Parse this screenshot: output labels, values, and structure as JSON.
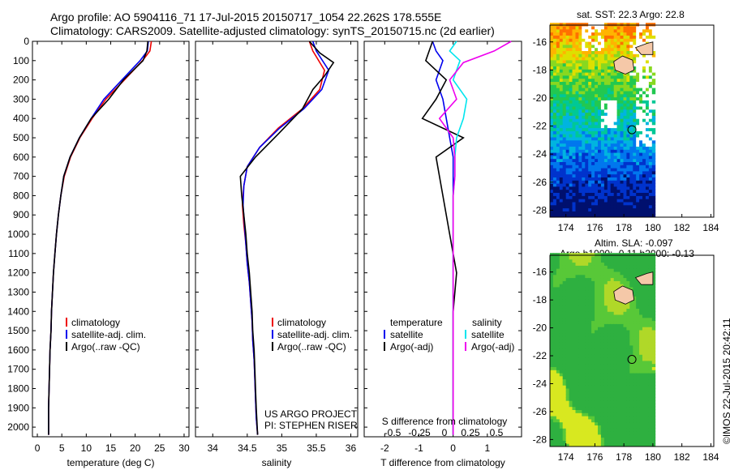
{
  "header": {
    "title_line1": "Argo profile: AO 5904116_71 17-Jul-2015 20150717_1054 22.262S 178.555E",
    "title_line2": "Climatology: CARS2009. Satellite-adjusted climatology: synTS_20150715.nc (2d earlier)"
  },
  "colors": {
    "climatology": "#ee0000",
    "satellite": "#0000ee",
    "argo": "#000000",
    "salinity_satellite": "#00e5ee",
    "salinity_argo": "#ee00ee",
    "land": "#f5c8a8"
  },
  "chart_data": [
    {
      "type": "line",
      "name_key": "temperature",
      "xlabel": "temperature (deg C)",
      "ylabel": "",
      "xlim": [
        -1,
        31
      ],
      "ylim": [
        2050,
        0
      ],
      "xticks": [
        0,
        5,
        10,
        15,
        20,
        25,
        30
      ],
      "yticks": [
        0,
        100,
        200,
        300,
        400,
        500,
        600,
        700,
        800,
        900,
        1000,
        1100,
        1200,
        1300,
        1400,
        1500,
        1600,
        1700,
        1800,
        1900,
        2000
      ],
      "legend": [
        "climatology",
        "satellite-adj. clim.",
        "Argo(..raw -QC)"
      ],
      "legend_position": "lower-center",
      "series": [
        {
          "name": "climatology",
          "color": "climatology",
          "x": [
            23.3,
            23.0,
            21.5,
            17.8,
            14.0,
            11.2,
            8.7,
            6.8,
            5.5,
            4.8,
            4.3,
            3.9,
            3.6,
            3.3,
            3.1,
            2.9,
            2.8,
            2.6,
            2.5,
            2.4,
            2.3,
            2.3
          ],
          "y": [
            0,
            50,
            100,
            200,
            300,
            400,
            500,
            600,
            700,
            800,
            900,
            1000,
            1100,
            1200,
            1300,
            1400,
            1500,
            1600,
            1700,
            1800,
            1900,
            2040
          ]
        },
        {
          "name": "satellite-adj. clim.",
          "color": "satellite",
          "x": [
            22.7,
            22.5,
            21.0,
            17.3,
            13.6,
            11.0,
            8.6,
            6.7,
            5.4,
            4.8,
            4.3,
            3.9,
            3.6,
            3.3,
            3.1,
            2.9,
            2.8,
            2.6,
            2.5,
            2.4,
            2.3,
            2.3
          ],
          "y": [
            0,
            50,
            100,
            200,
            300,
            400,
            500,
            600,
            700,
            800,
            900,
            1000,
            1100,
            1200,
            1300,
            1400,
            1500,
            1600,
            1700,
            1800,
            1900,
            2040
          ]
        },
        {
          "name": "Argo(..raw -QC)",
          "color": "argo",
          "x": [
            22.6,
            22.4,
            21.6,
            17.6,
            14.6,
            11.0,
            8.6,
            6.7,
            5.4,
            4.8,
            4.3,
            3.9,
            3.6,
            3.3,
            3.1,
            2.9,
            2.8,
            2.6,
            2.5,
            2.4,
            2.3,
            2.3
          ],
          "y": [
            0,
            50,
            100,
            200,
            300,
            400,
            500,
            600,
            700,
            800,
            900,
            1000,
            1100,
            1200,
            1300,
            1400,
            1500,
            1600,
            1700,
            1800,
            1900,
            2040
          ]
        }
      ]
    },
    {
      "type": "line",
      "name_key": "salinity",
      "xlabel": "salinity",
      "xlim": [
        33.75,
        36.1
      ],
      "ylim": [
        2050,
        0
      ],
      "xticks": [
        34,
        34.5,
        35,
        35.5,
        36
      ],
      "legend": [
        "climatology",
        "satellite-adj. clim.",
        "Argo(..raw -QC)"
      ],
      "legend_position": "lower-center",
      "annotation_lines": [
        "US ARGO PROJECT",
        "PI: STEPHEN RISER"
      ],
      "series": [
        {
          "name": "climatology",
          "color": "climatology",
          "x": [
            35.4,
            35.45,
            35.62,
            35.55,
            35.3,
            34.95,
            34.68,
            34.5,
            34.45,
            34.43,
            34.45,
            34.48,
            34.5,
            34.53,
            34.55,
            34.57,
            34.58,
            34.6,
            34.61,
            34.62,
            34.63,
            34.65
          ],
          "y": [
            0,
            50,
            150,
            250,
            350,
            450,
            550,
            650,
            750,
            850,
            950,
            1050,
            1150,
            1250,
            1350,
            1450,
            1550,
            1650,
            1750,
            1850,
            1950,
            2040
          ]
        },
        {
          "name": "satellite-adj. clim.",
          "color": "satellite",
          "x": [
            35.45,
            35.5,
            35.68,
            35.58,
            35.32,
            34.97,
            34.68,
            34.5,
            34.45,
            34.44,
            34.46,
            34.48,
            34.5,
            34.53,
            34.55,
            34.57,
            34.58,
            34.6,
            34.61,
            34.62,
            34.63,
            34.65
          ],
          "y": [
            0,
            50,
            150,
            250,
            350,
            450,
            550,
            650,
            750,
            850,
            950,
            1050,
            1150,
            1250,
            1350,
            1450,
            1550,
            1650,
            1750,
            1850,
            1950,
            2040
          ]
        },
        {
          "name": "Argo(..raw -QC)",
          "color": "argo",
          "x": [
            35.4,
            35.55,
            35.75,
            35.62,
            35.45,
            35.3,
            34.95,
            34.62,
            34.4,
            34.42,
            34.45,
            34.48,
            34.5,
            34.53,
            34.55,
            34.57,
            34.58,
            34.6,
            34.61,
            34.62,
            34.63,
            34.65
          ],
          "y": [
            0,
            60,
            110,
            180,
            250,
            350,
            480,
            600,
            700,
            800,
            900,
            1000,
            1100,
            1200,
            1300,
            1400,
            1500,
            1600,
            1700,
            1800,
            1900,
            2040
          ]
        }
      ]
    },
    {
      "type": "line",
      "name_key": "differences",
      "xlabel": "T difference from climatology",
      "xlabel_top": "S difference from climatology",
      "xlim": [
        -2.6,
        2.0
      ],
      "ylim": [
        2050,
        0
      ],
      "xticks": [
        -2,
        -1,
        0,
        1
      ],
      "xticks_top": [
        "-0.5",
        "-0.25",
        "0",
        "0.25",
        "0.5"
      ],
      "legend_temperature": {
        "title": "temperature",
        "items": [
          "satellite",
          "Argo(-adj)"
        ]
      },
      "legend_salinity": {
        "title": "salinity",
        "items": [
          "satellite",
          "Argo(-adj)"
        ]
      },
      "series": [
        {
          "name": "satellite",
          "group": "temperature",
          "color": "satellite",
          "x": [
            -0.6,
            -0.5,
            -0.3,
            -0.5,
            -0.3,
            -0.2,
            -0.1,
            0,
            0,
            0,
            0,
            0,
            0,
            0,
            0,
            0
          ],
          "y": [
            0,
            50,
            100,
            200,
            300,
            400,
            500,
            600,
            700,
            800,
            1000,
            1200,
            1400,
            1600,
            1800,
            2040
          ]
        },
        {
          "name": "Argo(-adj)",
          "group": "temperature",
          "color": "argo",
          "x": [
            -0.6,
            -0.7,
            -0.8,
            -0.2,
            -0.5,
            -0.9,
            0.3,
            -0.5,
            -0.4,
            -0.3,
            -0.1,
            0.1,
            0.0,
            0.0,
            0.0,
            0.0
          ],
          "y": [
            0,
            50,
            100,
            200,
            300,
            400,
            500,
            600,
            700,
            800,
            1000,
            1200,
            1400,
            1600,
            1800,
            2040
          ]
        },
        {
          "name": "satellite",
          "group": "salinity",
          "color": "salinity_satellite",
          "x": [
            0.1,
            -0.1,
            0.2,
            0.0,
            0.4,
            0.3,
            0.1,
            0.05,
            0.05,
            0,
            0,
            0,
            0,
            0,
            0
          ],
          "y": [
            0,
            50,
            100,
            200,
            300,
            400,
            500,
            600,
            700,
            800,
            1000,
            1200,
            1400,
            1600,
            2040
          ]
        },
        {
          "name": "Argo(-adj)",
          "group": "salinity",
          "color": "salinity_argo",
          "x": [
            1.7,
            1.2,
            0.3,
            -0.1,
            0.1,
            -0.4,
            0.0,
            0.05,
            0.05,
            0,
            0,
            0,
            0,
            0,
            0
          ],
          "y": [
            0,
            50,
            110,
            200,
            300,
            400,
            500,
            600,
            700,
            800,
            1000,
            1200,
            1400,
            1600,
            2040
          ]
        }
      ]
    }
  ],
  "maps": {
    "sst": {
      "label": "sat. SST: 22.3 Argo: 22.8",
      "xticks": [
        174,
        176,
        178,
        180,
        182,
        184
      ],
      "yticks": [
        -16,
        -18,
        -20,
        -22,
        -24,
        -26,
        -28
      ],
      "lon_range": [
        172.9,
        184.2
      ],
      "lat_range": [
        -28.5,
        -14.8
      ],
      "argo_position": [
        178.555,
        -22.262
      ]
    },
    "sla": {
      "label_line1": "Altim. SLA: -0.097",
      "label_line2": "Argo h1000: -0.11 h2000: -0.13",
      "xticks": [
        174,
        176,
        178,
        180,
        182,
        184
      ],
      "yticks": [
        -16,
        -18,
        -20,
        -22,
        -24,
        -26,
        -28
      ],
      "lon_range": [
        172.9,
        184.2
      ],
      "lat_range": [
        -28.5,
        -14.8
      ],
      "argo_position": [
        178.555,
        -22.262
      ]
    }
  },
  "credit": "©IMOS 22-Jul-2015 20:42:11"
}
